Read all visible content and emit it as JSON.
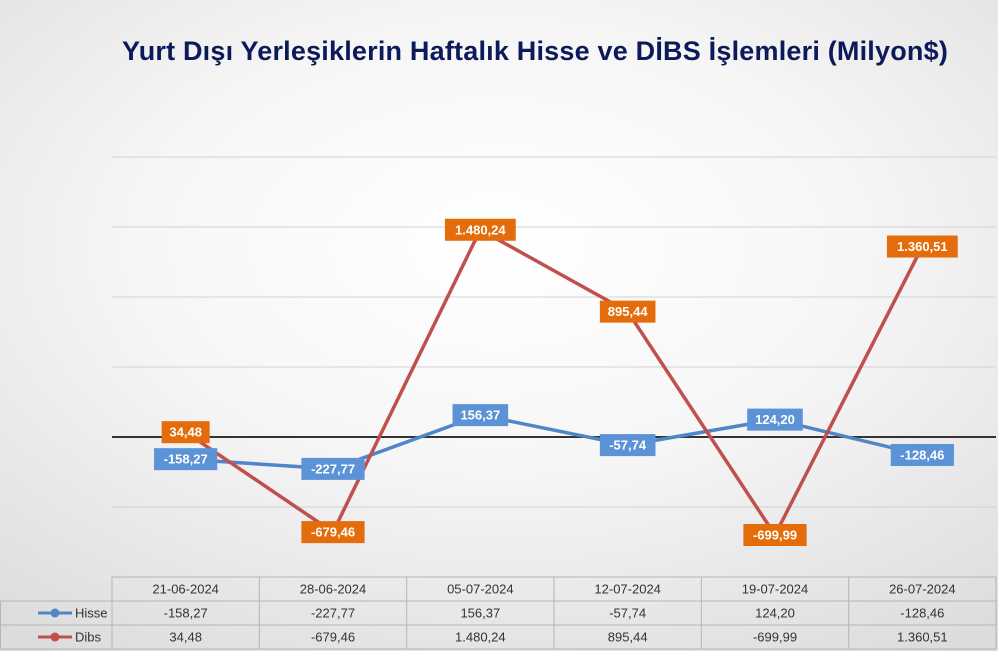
{
  "chart_data": {
    "type": "line",
    "title": "Yurt Dışı Yerleşiklerin Haftalık Hisse ve DİBS İşlemleri (Milyon$)",
    "categories": [
      "21-06-2024",
      "28-06-2024",
      "05-07-2024",
      "12-07-2024",
      "19-07-2024",
      "26-07-2024"
    ],
    "series": [
      {
        "name": "Hisse",
        "values": [
          -158.27,
          -227.77,
          156.37,
          -57.74,
          124.2,
          -128.46
        ],
        "labels": [
          "-158,27",
          "-227,77",
          "156,37",
          "-57,74",
          "124,20",
          "-128,46"
        ],
        "color": "#4e86c8",
        "label_bg": "#5b93d6"
      },
      {
        "name": "Dibs",
        "values": [
          34.48,
          -679.46,
          1480.24,
          895.44,
          -699.99,
          1360.51
        ],
        "labels": [
          "34,48",
          "-679,46",
          "1.480,24",
          "895,44",
          "-699,99",
          "1.360,51"
        ],
        "color": "#c0504d",
        "label_bg": "#e46c0a"
      }
    ],
    "ylim": [
      -1000,
      2000
    ],
    "grid": true,
    "legend": "data-table",
    "zero_line_color": "#333333"
  }
}
